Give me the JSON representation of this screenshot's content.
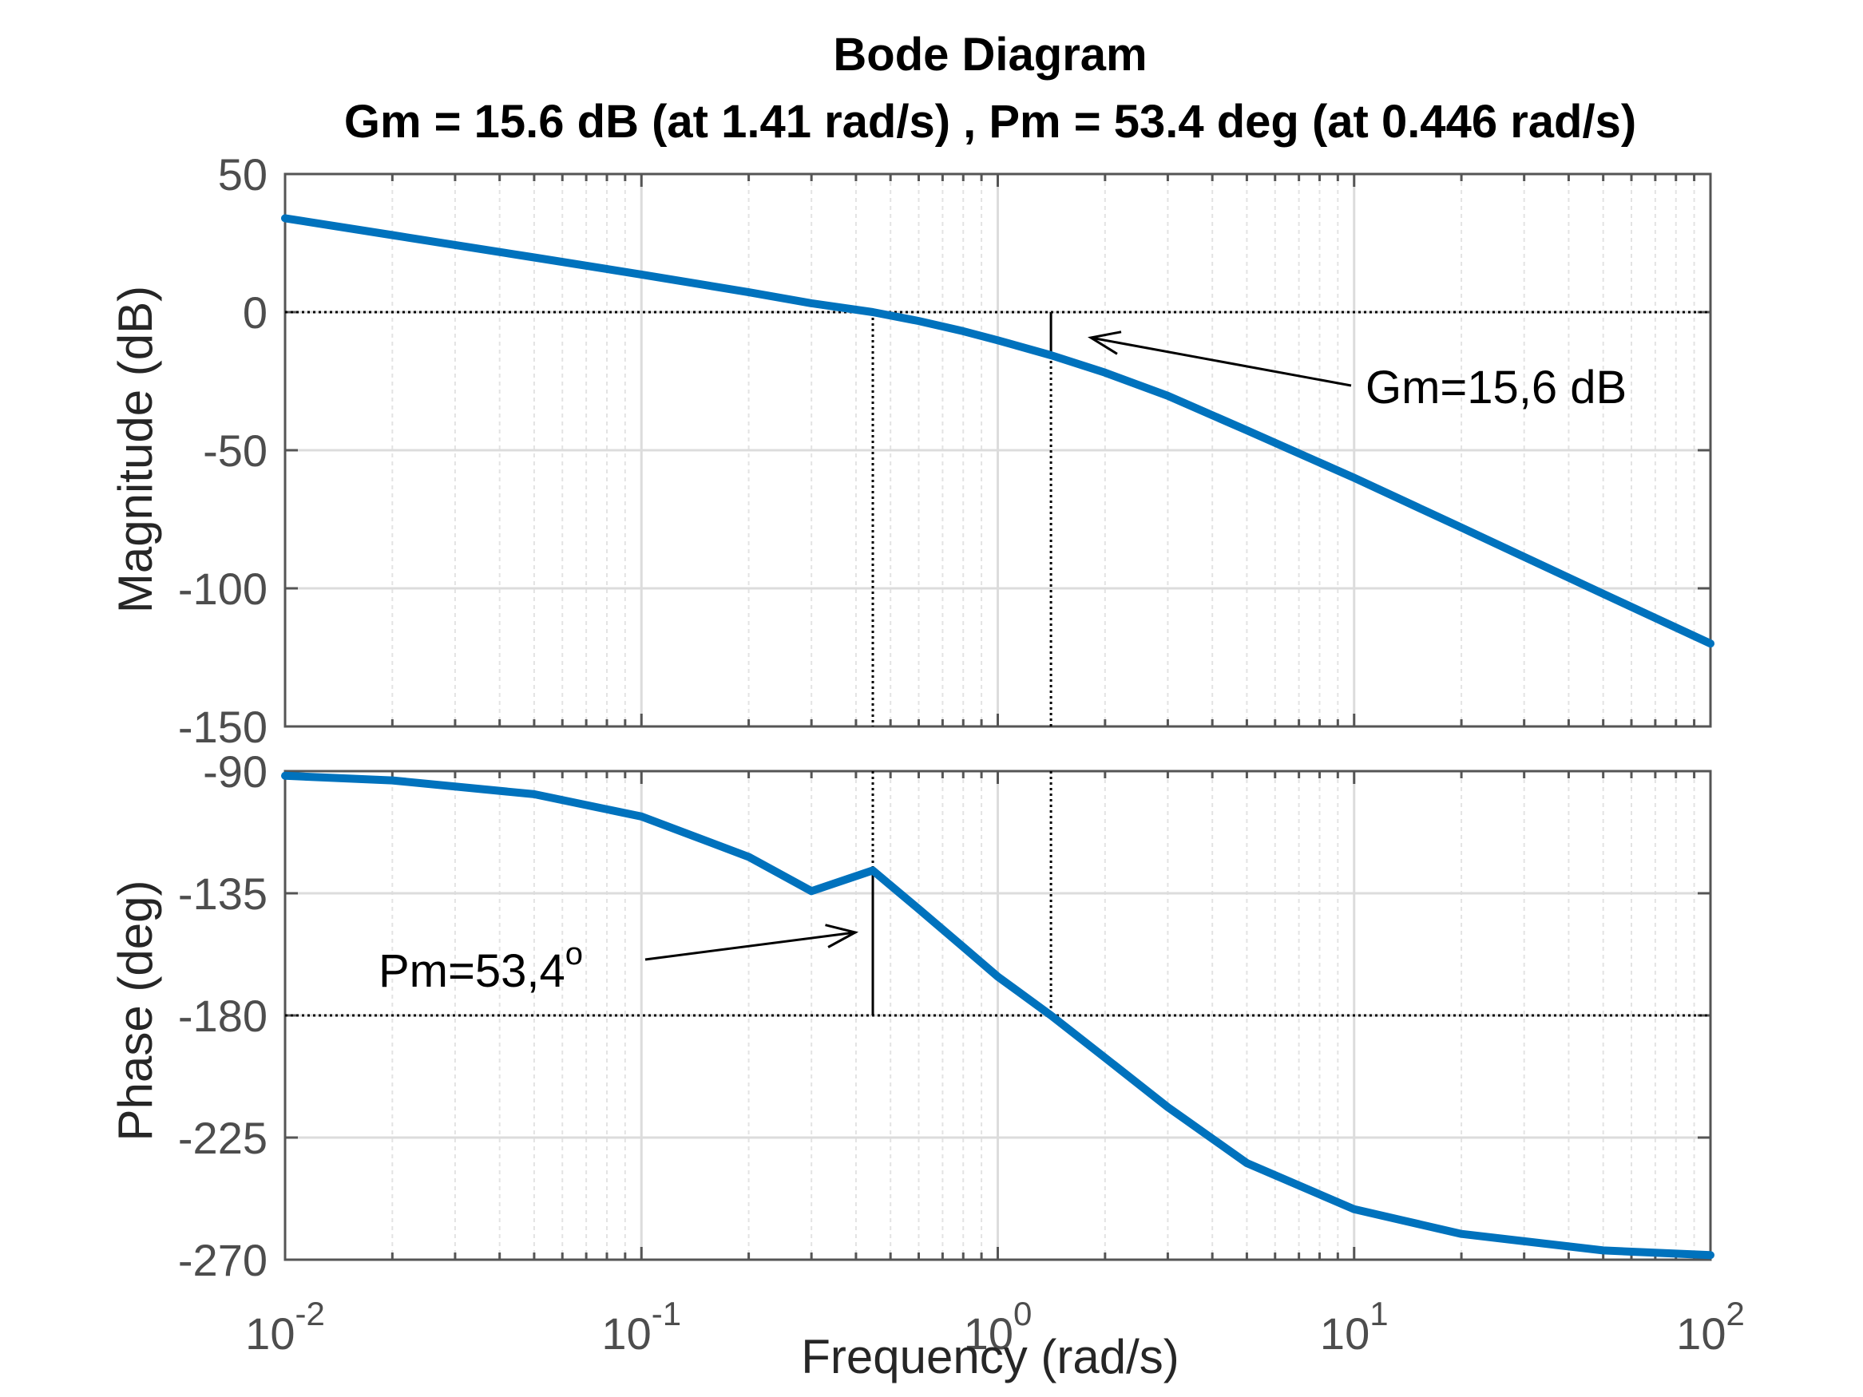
{
  "chart_data": {
    "type": "line",
    "title": "Bode Diagram",
    "subtitle": "Gm = 15.6 dB (at 1.41 rad/s) ,  Pm = 53.4 deg (at 0.446 rad/s)",
    "xlabel": "Frequency  (rad/s)",
    "xscale": "log",
    "xlim": [
      0.01,
      100
    ],
    "xticks": [
      {
        "base": "10",
        "exp": "-2"
      },
      {
        "base": "10",
        "exp": "-1"
      },
      {
        "base": "10",
        "exp": "0"
      },
      {
        "base": "10",
        "exp": "1"
      },
      {
        "base": "10",
        "exp": "2"
      }
    ],
    "grid": true,
    "line_color": "#0072bd",
    "magnitude": {
      "ylabel": "Magnitude (dB)",
      "ylim": [
        -150,
        50
      ],
      "yticks": [
        "50",
        "0",
        "-50",
        "-100",
        "-150"
      ],
      "x": [
        0.01,
        0.02,
        0.05,
        0.1,
        0.2,
        0.3,
        0.446,
        0.6,
        0.8,
        1.0,
        1.41,
        2,
        3,
        5,
        10,
        20,
        50,
        100
      ],
      "y": [
        34,
        27.9,
        19.8,
        13.6,
        7.2,
        3.2,
        0,
        -3.2,
        -6.9,
        -10.2,
        -15.6,
        -21.9,
        -30.3,
        -42.8,
        -60,
        -78,
        -102,
        -120
      ],
      "reference_line": 0,
      "annotation": "Gm=15,6 dB"
    },
    "phase": {
      "ylabel": "Phase (deg)",
      "ylim": [
        -270,
        -90
      ],
      "yticks": [
        "-90",
        "-135",
        "-180",
        "-225",
        "-270"
      ],
      "x": [
        0.01,
        0.02,
        0.05,
        0.1,
        0.2,
        0.3,
        0.446,
        0.6,
        0.8,
        1.0,
        1.41,
        2,
        3,
        5,
        10,
        20,
        50,
        100
      ],
      "y": [
        -91.7,
        -93.4,
        -98.5,
        -106.7,
        -121.6,
        -134.2,
        -126.6,
        -140.8,
        -154.8,
        -165.7,
        -180,
        -195.6,
        -213.8,
        -234.4,
        -251.4,
        -260.5,
        -266.6,
        -268.3
      ],
      "reference_line": -180,
      "annotation": "Pm=53,4",
      "annotation_sup": "o"
    },
    "crossover": {
      "phase_margin_freq": 0.446,
      "gain_margin_freq": 1.41
    }
  }
}
